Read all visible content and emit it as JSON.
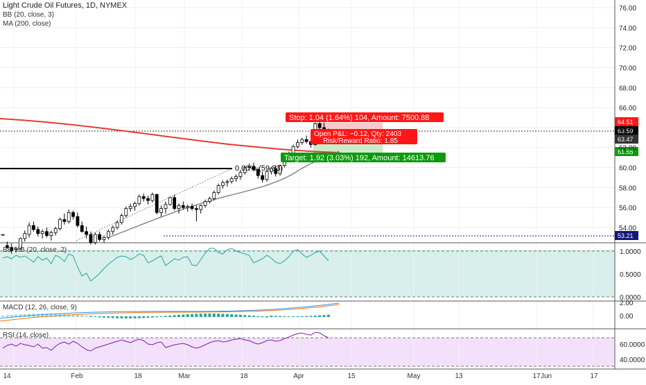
{
  "legend": {
    "symbol": "Light Crude Oil Futures, 1D, NYMEX",
    "bb": "BB (20, close, 3)",
    "ma": "MA (200, close)"
  },
  "price_axis": {
    "ticks": [
      "76.00",
      "74.00",
      "72.00",
      "70.00",
      "68.00",
      "66.00",
      "64.00",
      "62.00",
      "60.00",
      "58.00",
      "56.00",
      "54.00"
    ]
  },
  "price_badges": [
    {
      "value": "64.51",
      "color": "#ff1717"
    },
    {
      "value": "63.59",
      "color": "#000000"
    },
    {
      "value": "63.47",
      "color": "#333333"
    },
    {
      "value": "61.55",
      "color": "#0c9b0c"
    },
    {
      "value": "53.21",
      "color": "#131778"
    }
  ],
  "position": {
    "stop_label": "Stop: 1.04 (1.64%) 104, Amount: 7500.88",
    "open_pl_label": "Open P&L: −0.12, Qty: 2403",
    "rr_label": "Risk/Reward Ratio: 1.85",
    "target_label": "Target: 1.92 (3.03%) 192, Amount: 14613.76",
    "stop_color": "#ff1717",
    "target_color": "#0c9b0c"
  },
  "fib_label": "0.00% (59.83)",
  "panels": {
    "bbp": {
      "label": "BB %B (20, close, 2)",
      "ticks": [
        "1.0000",
        "0.5000",
        "0.0000"
      ]
    },
    "macd": {
      "label": "MACD (12, 26, close, 9)",
      "ticks": [
        "2.00",
        "0.00"
      ]
    },
    "rsi": {
      "label": "RSI (14, close)",
      "ticks": [
        "60.0000",
        "40.0000"
      ]
    }
  },
  "time_axis": {
    "labels": [
      "14",
      "Feb",
      "18",
      "Mar",
      "18",
      "Apr",
      "15",
      "May",
      "13",
      "17",
      "Jun",
      "17"
    ]
  },
  "chart_data": {
    "type": "candlestick",
    "title": "Light Crude Oil Futures, 1D, NYMEX",
    "ylim": [
      53.2,
      76.6
    ],
    "candles": [
      [
        53.3,
        53.3,
        53.3,
        53.3
      ],
      [
        52.2,
        52.6,
        51.9,
        52.0
      ],
      [
        52.0,
        52.4,
        51.4,
        51.7
      ],
      [
        51.8,
        52.1,
        51.5,
        51.9
      ],
      [
        51.9,
        53.0,
        51.8,
        52.9
      ],
      [
        52.9,
        53.7,
        52.6,
        53.4
      ],
      [
        53.3,
        54.5,
        53.0,
        54.2
      ],
      [
        54.2,
        54.6,
        53.6,
        53.8
      ],
      [
        53.8,
        54.1,
        53.1,
        53.4
      ],
      [
        53.4,
        53.8,
        52.9,
        53.6
      ],
      [
        53.6,
        54.0,
        53.0,
        53.2
      ],
      [
        53.2,
        53.7,
        52.7,
        53.5
      ],
      [
        53.5,
        54.1,
        53.2,
        53.9
      ],
      [
        53.9,
        55.0,
        53.7,
        54.8
      ],
      [
        54.8,
        55.4,
        54.3,
        54.6
      ],
      [
        54.6,
        55.8,
        54.4,
        55.5
      ],
      [
        55.5,
        55.7,
        54.8,
        55.1
      ],
      [
        55.1,
        55.5,
        54.0,
        54.2
      ],
      [
        54.2,
        54.6,
        53.5,
        53.6
      ],
      [
        53.6,
        54.1,
        52.9,
        53.3
      ],
      [
        53.3,
        53.6,
        52.3,
        52.5
      ],
      [
        52.5,
        53.5,
        52.3,
        53.3
      ],
      [
        53.3,
        53.6,
        52.6,
        52.8
      ],
      [
        52.8,
        53.2,
        52.5,
        53.0
      ],
      [
        53.0,
        53.8,
        52.8,
        53.6
      ],
      [
        53.6,
        54.2,
        53.3,
        54.0
      ],
      [
        54.0,
        54.7,
        53.8,
        54.5
      ],
      [
        54.5,
        55.4,
        54.3,
        55.2
      ],
      [
        55.2,
        56.1,
        55.0,
        55.9
      ],
      [
        55.9,
        56.4,
        55.6,
        56.1
      ],
      [
        56.1,
        56.6,
        55.7,
        56.4
      ],
      [
        56.4,
        57.3,
        56.2,
        57.1
      ],
      [
        57.1,
        57.4,
        56.6,
        56.9
      ],
      [
        56.9,
        57.2,
        56.3,
        56.7
      ],
      [
        56.7,
        57.5,
        56.5,
        57.3
      ],
      [
        57.3,
        57.4,
        55.3,
        55.5
      ],
      [
        55.5,
        56.2,
        55.1,
        55.9
      ],
      [
        55.9,
        56.6,
        55.4,
        56.3
      ],
      [
        56.3,
        57.1,
        56.2,
        57.0
      ],
      [
        57.0,
        57.3,
        55.7,
        55.9
      ],
      [
        55.9,
        56.4,
        55.4,
        56.2
      ],
      [
        56.2,
        56.6,
        55.8,
        56.0
      ],
      [
        56.0,
        56.3,
        55.6,
        56.1
      ],
      [
        56.1,
        56.4,
        55.7,
        55.9
      ],
      [
        55.9,
        56.2,
        54.6,
        55.8
      ],
      [
        55.8,
        56.3,
        55.4,
        56.2
      ],
      [
        56.2,
        56.8,
        56.0,
        56.6
      ],
      [
        56.6,
        57.1,
        56.4,
        56.9
      ],
      [
        56.9,
        57.7,
        56.7,
        57.5
      ],
      [
        57.5,
        58.4,
        57.3,
        58.2
      ],
      [
        58.2,
        58.7,
        57.9,
        58.5
      ],
      [
        58.5,
        58.8,
        58.1,
        58.6
      ],
      [
        58.6,
        59.1,
        58.4,
        58.9
      ],
      [
        58.9,
        59.3,
        58.6,
        59.1
      ],
      [
        59.1,
        59.7,
        58.8,
        59.5
      ],
      [
        59.5,
        60.2,
        59.3,
        60.0
      ],
      [
        60.0,
        60.4,
        59.7,
        60.1
      ],
      [
        60.1,
        60.5,
        59.6,
        59.8
      ],
      [
        59.8,
        60.0,
        58.9,
        59.2
      ],
      [
        59.2,
        59.6,
        58.5,
        58.8
      ],
      [
        58.8,
        59.8,
        58.6,
        59.6
      ],
      [
        59.6,
        60.1,
        59.3,
        59.9
      ],
      [
        59.9,
        60.2,
        59.1,
        59.4
      ],
      [
        59.4,
        60.3,
        59.2,
        60.2
      ],
      [
        60.2,
        61.0,
        60.0,
        60.8
      ],
      [
        60.8,
        61.6,
        60.6,
        61.4
      ],
      [
        61.4,
        62.3,
        61.2,
        62.1
      ],
      [
        62.1,
        62.8,
        61.9,
        62.5
      ],
      [
        62.5,
        63.0,
        62.3,
        62.8
      ],
      [
        62.8,
        63.2,
        62.4,
        62.6
      ],
      [
        62.6,
        63.0,
        62.0,
        62.3
      ],
      [
        62.3,
        64.5,
        62.2,
        64.4
      ],
      [
        64.4,
        64.6,
        63.7,
        64.0
      ],
      [
        64.0,
        64.5,
        63.3,
        63.4
      ],
      [
        63.4,
        63.9,
        63.3,
        63.6
      ]
    ]
  }
}
